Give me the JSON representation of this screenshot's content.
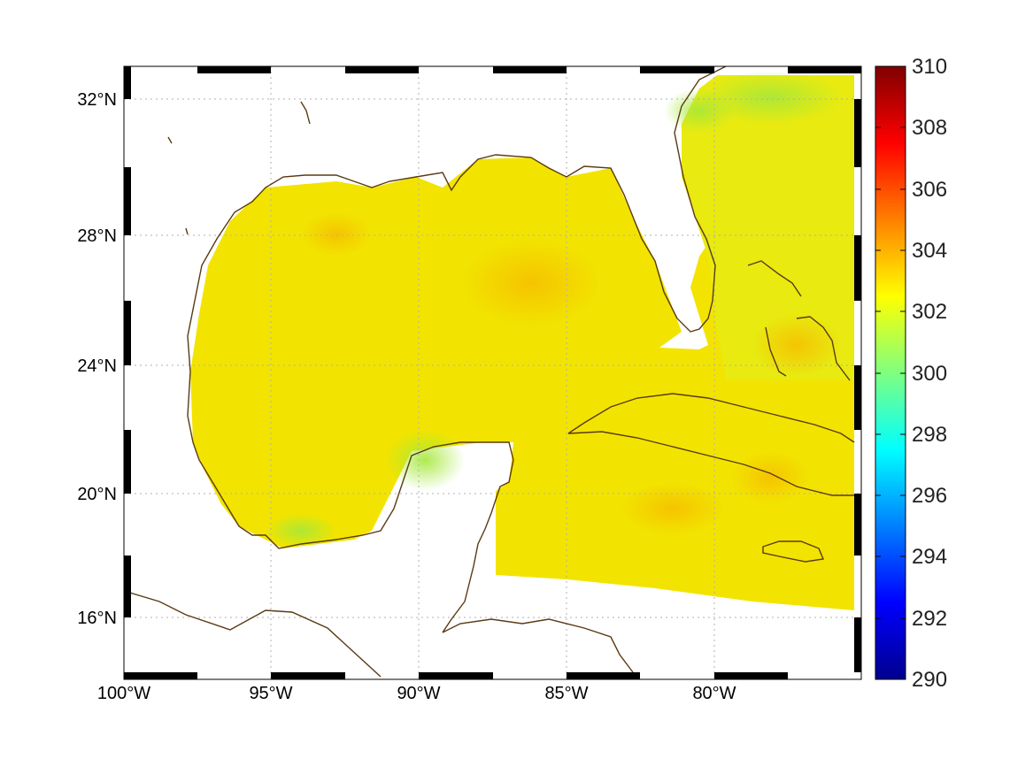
{
  "map": {
    "lon_range": [
      -100,
      -75
    ],
    "lat_range": [
      14.5,
      33
    ],
    "lon_ticks": [
      {
        "value": -100,
        "label": "100°W"
      },
      {
        "value": -95,
        "label": "95°W"
      },
      {
        "value": -90,
        "label": "90°W"
      },
      {
        "value": -85,
        "label": "85°W"
      },
      {
        "value": -80,
        "label": "80°W"
      }
    ],
    "lat_ticks": [
      {
        "value": 16,
        "label": "16°N"
      },
      {
        "value": 20,
        "label": "20°N"
      },
      {
        "value": 24,
        "label": "24°N"
      },
      {
        "value": 28,
        "label": "28°N"
      },
      {
        "value": 32,
        "label": "32°N"
      }
    ],
    "grid": "dotted",
    "frame": "alternating black-white",
    "coastline_color": "#5a3a12",
    "no_data_color": "#ffffff"
  },
  "colorbar": {
    "colormap": "jet",
    "min": 290,
    "max": 310,
    "ticks": [
      {
        "value": 290,
        "label": "290"
      },
      {
        "value": 292,
        "label": "292"
      },
      {
        "value": 294,
        "label": "294"
      },
      {
        "value": 296,
        "label": "296"
      },
      {
        "value": 298,
        "label": "298"
      },
      {
        "value": 300,
        "label": "300"
      },
      {
        "value": 302,
        "label": "302"
      },
      {
        "value": 304,
        "label": "304"
      },
      {
        "value": 306,
        "label": "306"
      },
      {
        "value": 308,
        "label": "308"
      },
      {
        "value": 310,
        "label": "310"
      }
    ],
    "stops": [
      "#00008f",
      "#0000ff",
      "#00ffff",
      "#ffff00",
      "#ff0000",
      "#800000"
    ]
  },
  "field_colors": {
    "typical": "#f4e800",
    "warm": "#f7c800",
    "cool": "#b4ea2a"
  }
}
